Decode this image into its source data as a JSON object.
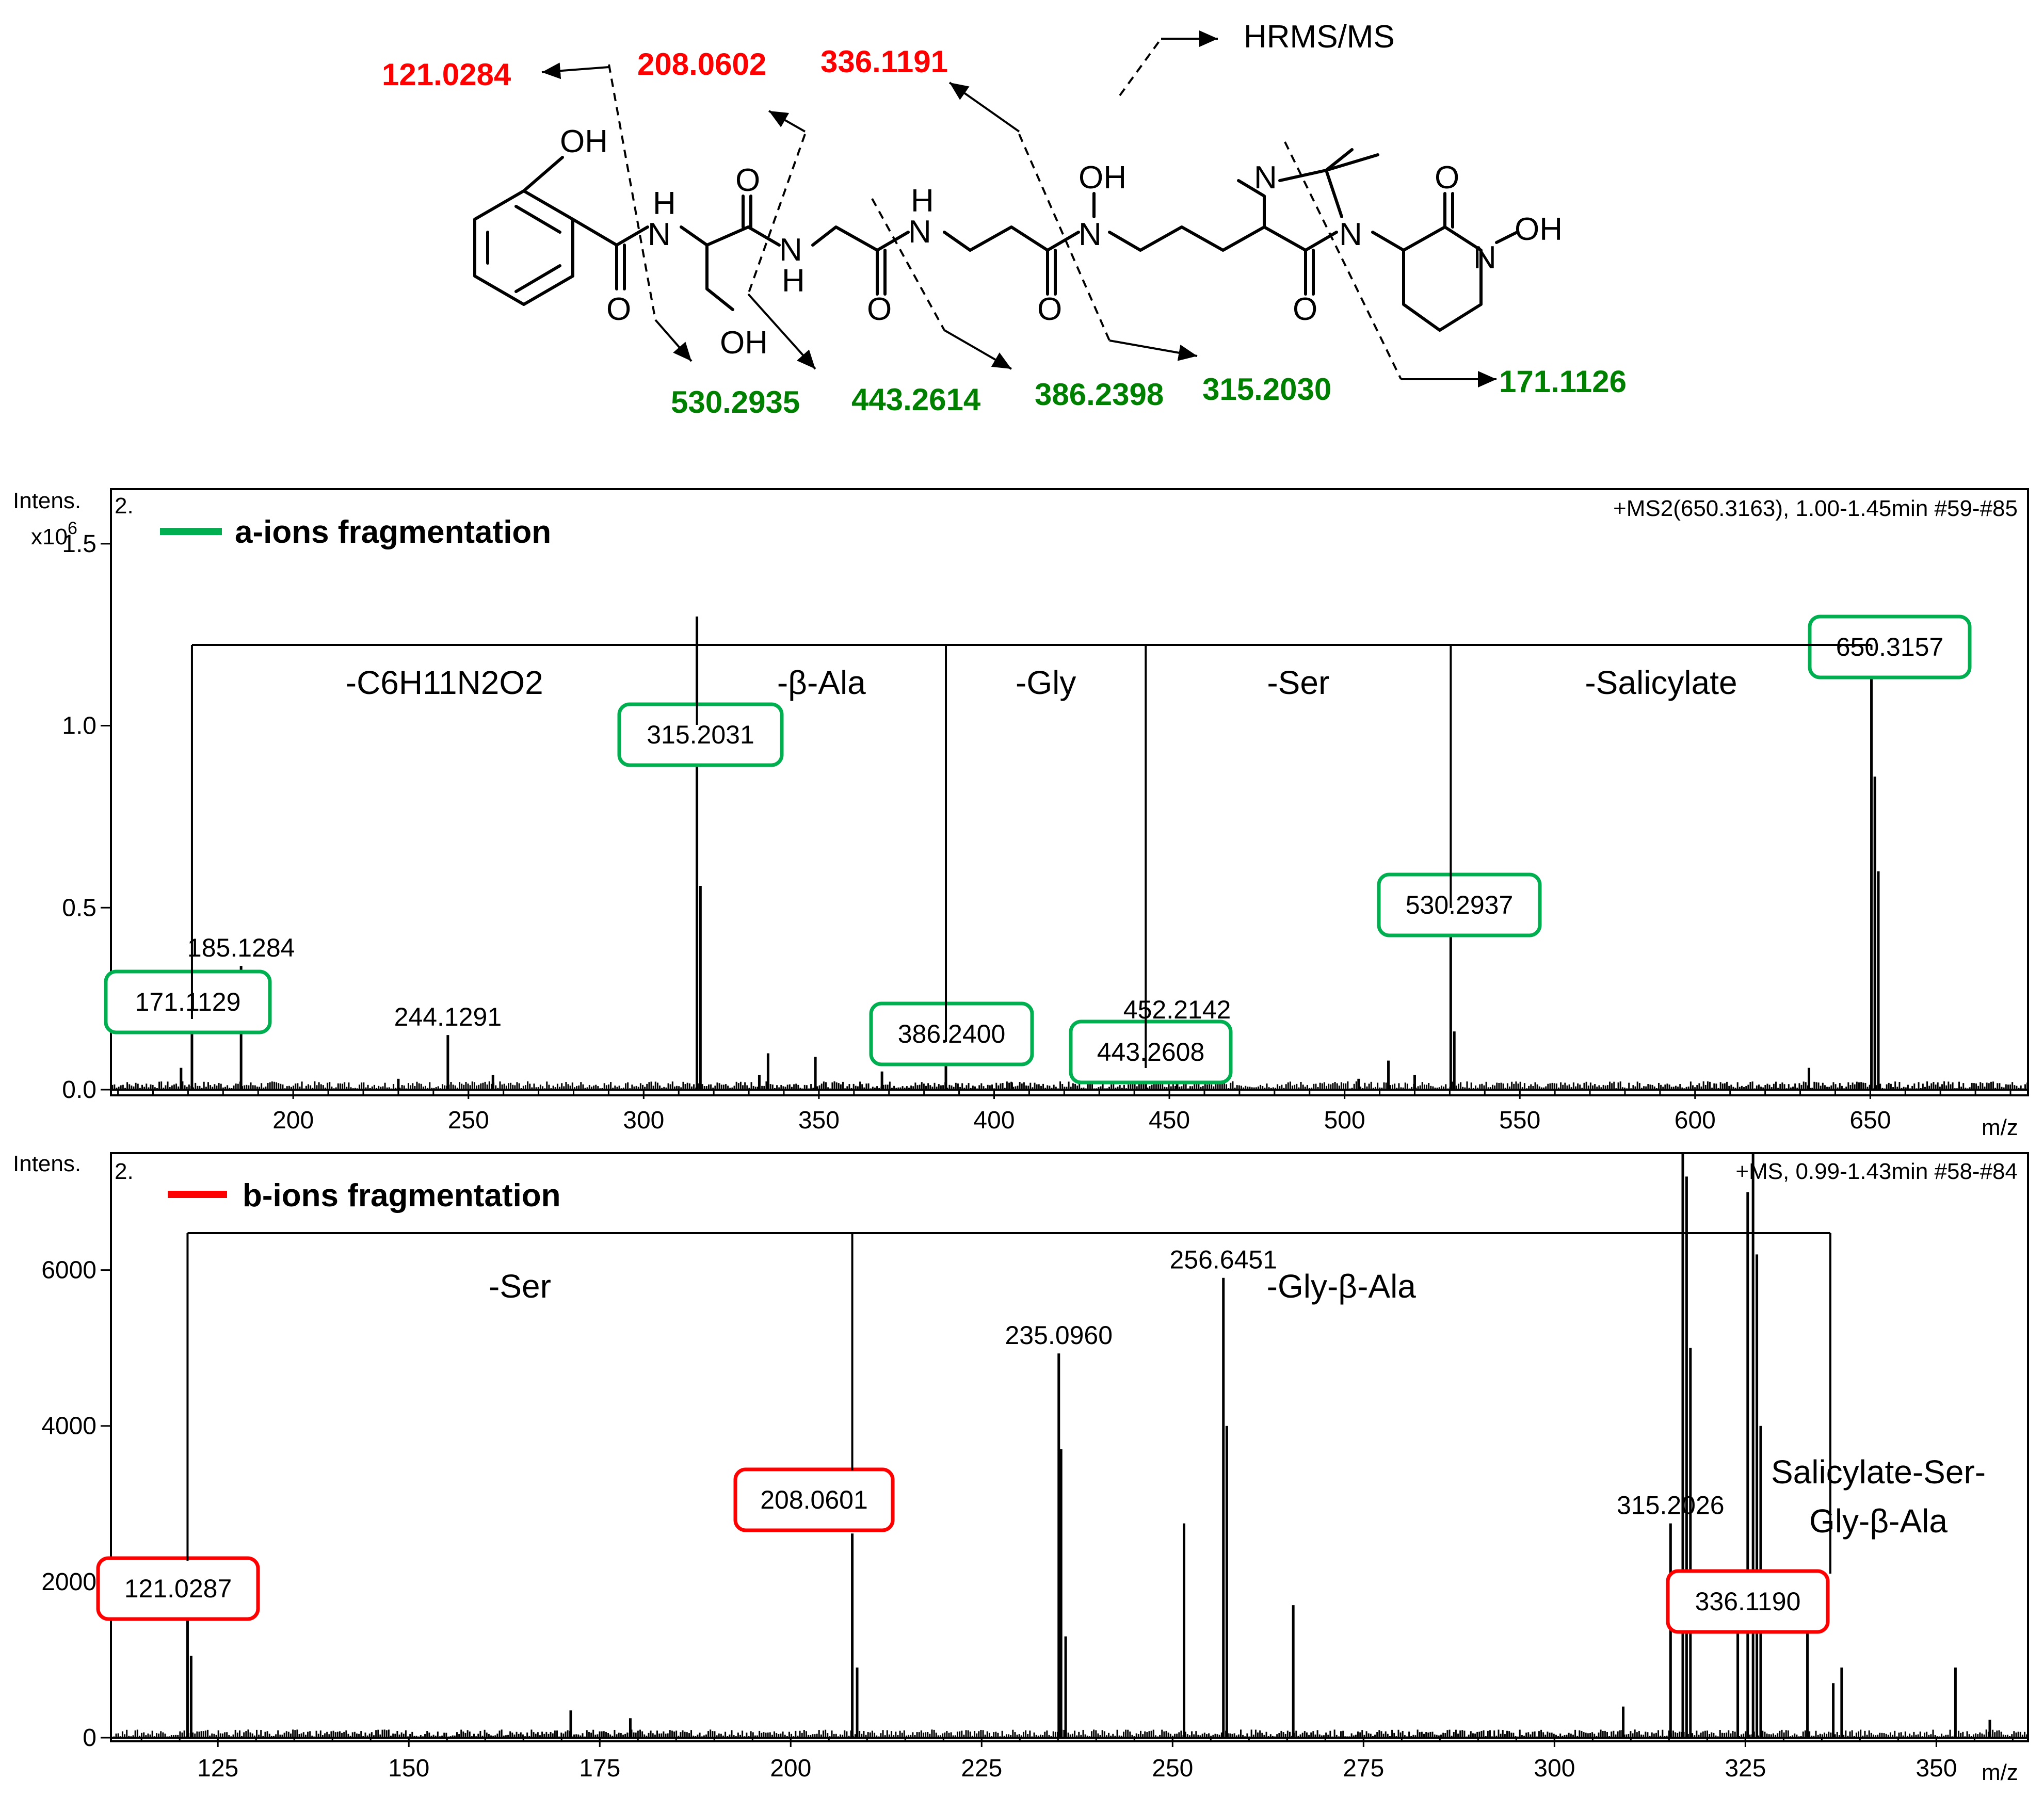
{
  "structure": {
    "annotation": "HRMS/MS",
    "atoms": [
      "OH",
      "H",
      "N",
      "O",
      "O",
      "N",
      "H",
      "OH",
      "O",
      "H",
      "N",
      "O",
      "N",
      "OH",
      "N",
      "O",
      "N",
      "O",
      "N",
      "OH"
    ],
    "b_labels": [
      "121.0284",
      "208.0602",
      "336.1191"
    ],
    "a_labels": [
      "530.2935",
      "443.2614",
      "386.2398",
      "315.2030",
      "171.1126"
    ],
    "colors": {
      "b_ions": "#ff0000",
      "a_ions": "#008000"
    }
  },
  "chart_data": [
    {
      "type": "bar",
      "panel_tag": "2.",
      "legend_label": "a-ions fragmentation",
      "legend_color": "#00b050",
      "info": "+MS2(650.3163), 1.00-1.45min #59-#85",
      "ylabel": "Intens.",
      "yscale_label": "x10",
      "yscale_exp": "6",
      "xlabel": "m/z",
      "xlim": [
        148,
        695
      ],
      "ylim": [
        0,
        1.65
      ],
      "xticks": [
        200,
        250,
        300,
        350,
        400,
        450,
        500,
        550,
        600,
        650
      ],
      "yticks": [
        "0.0",
        "0.5",
        "1.0",
        "1.5"
      ],
      "peaks": [
        {
          "x": 171.11,
          "y": 0.19
        },
        {
          "x": 185.13,
          "y": 0.34
        },
        {
          "x": 244.13,
          "y": 0.15
        },
        {
          "x": 315.2,
          "y": 1.3
        },
        {
          "x": 316.2,
          "y": 0.56
        },
        {
          "x": 335.5,
          "y": 0.1
        },
        {
          "x": 349.0,
          "y": 0.09
        },
        {
          "x": 386.24,
          "y": 0.11
        },
        {
          "x": 443.26,
          "y": 0.05
        },
        {
          "x": 452.21,
          "y": 0.17
        },
        {
          "x": 512.5,
          "y": 0.08
        },
        {
          "x": 530.29,
          "y": 0.52
        },
        {
          "x": 531.3,
          "y": 0.16
        },
        {
          "x": 632.5,
          "y": 0.06
        },
        {
          "x": 650.32,
          "y": 1.2
        },
        {
          "x": 651.3,
          "y": 0.86
        },
        {
          "x": 652.3,
          "y": 0.6
        },
        {
          "x": 168.0,
          "y": 0.06
        },
        {
          "x": 230.0,
          "y": 0.03
        },
        {
          "x": 257.0,
          "y": 0.04
        },
        {
          "x": 368.0,
          "y": 0.05
        },
        {
          "x": 333.0,
          "y": 0.04
        },
        {
          "x": 504.0,
          "y": 0.03
        },
        {
          "x": 520.0,
          "y": 0.04
        },
        {
          "x": 405.0,
          "y": 0.02
        }
      ],
      "peak_labels": [
        {
          "x": 185.13,
          "y": 0.34,
          "text": "185.1284"
        },
        {
          "x": 244.13,
          "y": 0.15,
          "text": "244.1291"
        },
        {
          "x": 452.21,
          "y": 0.17,
          "text": "452.2142"
        }
      ],
      "boxed_labels": [
        "171.1129",
        "315.2031",
        "386.2400",
        "443.2608",
        "530.2937",
        "650.3157"
      ],
      "losses": [
        "-C6H11N2O2",
        "-β-Ala",
        "-Gly",
        "-Ser",
        "-Salicylate"
      ]
    },
    {
      "type": "bar",
      "panel_tag": "2.",
      "legend_label": "b-ions fragmentation",
      "legend_color": "#ff0000",
      "info": "+MS, 0.99-1.43min #58-#84",
      "ylabel": "Intens.",
      "xlabel": "m/z",
      "xlim": [
        111,
        362
      ],
      "ylim": [
        0,
        7500
      ],
      "xticks": [
        125,
        150,
        175,
        200,
        225,
        250,
        275,
        300,
        325,
        350
      ],
      "yticks": [
        "0",
        "2000",
        "4000",
        "6000"
      ],
      "peaks": [
        {
          "x": 121.03,
          "y": 2000
        },
        {
          "x": 121.5,
          "y": 1050
        },
        {
          "x": 171.2,
          "y": 350
        },
        {
          "x": 179.0,
          "y": 250
        },
        {
          "x": 208.06,
          "y": 2620
        },
        {
          "x": 208.7,
          "y": 900
        },
        {
          "x": 235.1,
          "y": 4930
        },
        {
          "x": 235.4,
          "y": 3700
        },
        {
          "x": 236.0,
          "y": 1300
        },
        {
          "x": 251.5,
          "y": 2750
        },
        {
          "x": 256.65,
          "y": 5900
        },
        {
          "x": 257.1,
          "y": 4000
        },
        {
          "x": 265.8,
          "y": 1700
        },
        {
          "x": 309.0,
          "y": 400
        },
        {
          "x": 315.2,
          "y": 2750
        },
        {
          "x": 316.8,
          "y": 7500
        },
        {
          "x": 317.3,
          "y": 7200
        },
        {
          "x": 317.8,
          "y": 5000
        },
        {
          "x": 324.0,
          "y": 1850
        },
        {
          "x": 325.3,
          "y": 7000
        },
        {
          "x": 326.0,
          "y": 7500
        },
        {
          "x": 326.5,
          "y": 6200
        },
        {
          "x": 327.0,
          "y": 4000
        },
        {
          "x": 333.12,
          "y": 1650
        },
        {
          "x": 336.5,
          "y": 700
        },
        {
          "x": 337.6,
          "y": 900
        },
        {
          "x": 352.5,
          "y": 900
        },
        {
          "x": 357.0,
          "y": 230
        }
      ],
      "peak_labels": [
        {
          "x": 235.1,
          "y": 4930,
          "text": "235.0960"
        },
        {
          "x": 256.65,
          "y": 5900,
          "text": "256.6451"
        },
        {
          "x": 315.2,
          "y": 2750,
          "text": "315.2026"
        }
      ],
      "boxed_labels": [
        "121.0287",
        "208.0601",
        "336.1190"
      ],
      "losses": [
        "-Ser",
        "-Gly-β-Ala"
      ],
      "annotation_lines": [
        "Salicylate-Ser-",
        "Gly-β-Ala"
      ]
    }
  ]
}
